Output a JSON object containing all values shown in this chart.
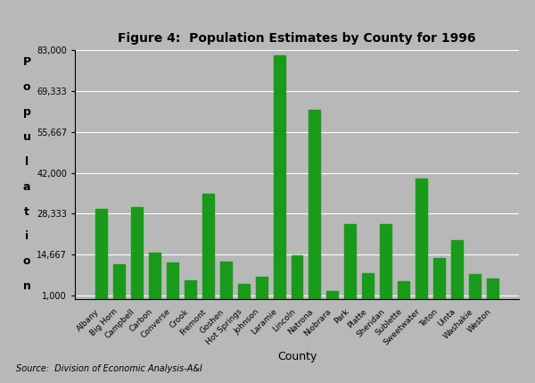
{
  "title": "Figure 4:  Population Estimates by County for 1996",
  "xlabel": "County",
  "ylabel_chars": [
    "P",
    "o",
    "p",
    "u",
    "l",
    "a",
    "t",
    "i",
    "o",
    "n"
  ],
  "source_text": "Source:  Division of Economic Analysis-A&I",
  "bar_color": "#1a9a1a",
  "background_color": "#b8b8b8",
  "plot_bg_color": "#b8b8b8",
  "counties": [
    "Albany",
    "Big Horn",
    "Campbell",
    "Carbon",
    "Converse",
    "Crook",
    "Fremont",
    "Goshen",
    "Hot Springs",
    "Johnson",
    "Laramie",
    "Lincoln",
    "Natrona",
    "Niobrara",
    "Park",
    "Platte",
    "Sheridan",
    "Sublette",
    "Sweetwater",
    "Teton",
    "Uinta",
    "Washakie",
    "Weston"
  ],
  "values": [
    30000,
    11500,
    30500,
    15500,
    12000,
    6200,
    35000,
    12500,
    4800,
    7200,
    81200,
    14500,
    63000,
    2500,
    25000,
    8500,
    25000,
    5800,
    40000,
    13500,
    19500,
    8200,
    6800
  ],
  "ylim": [
    0,
    83000
  ],
  "yticks": [
    1000,
    14667,
    28333,
    42000,
    55667,
    69333,
    83000
  ],
  "ytick_labels": [
    "1,000",
    "14,667",
    "28,333",
    "42,000",
    "55,667",
    "69,333",
    "83,000"
  ]
}
